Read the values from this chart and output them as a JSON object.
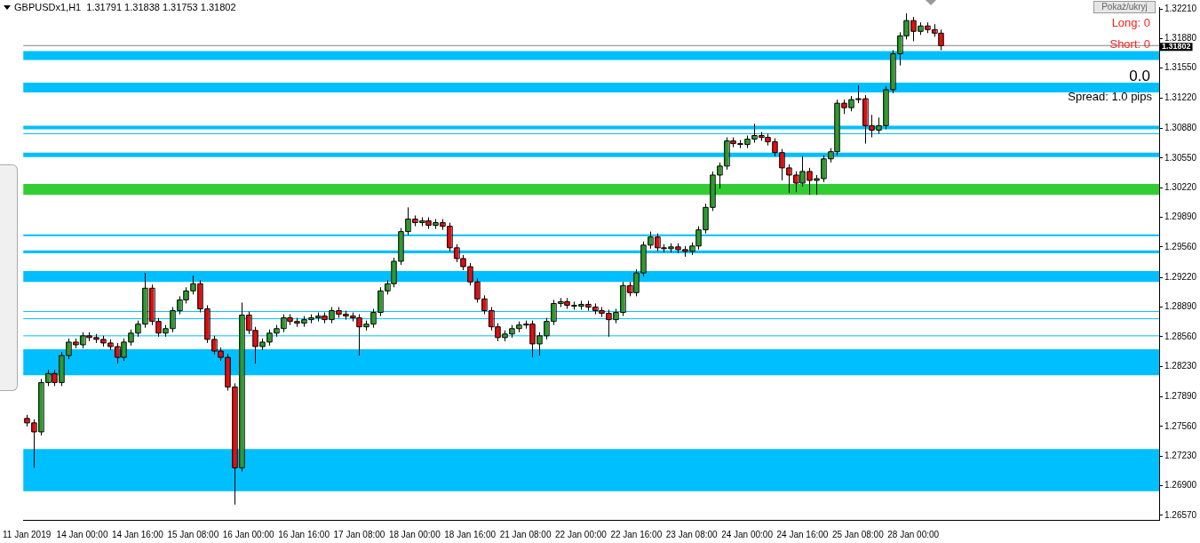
{
  "chart_data": {
    "type": "candlestick",
    "title": "GBPUSDx1,H1  1.31791 1.31838 1.31753 1.31802",
    "annotations": [
      "Long: 0",
      "Short: 0",
      "0.0",
      "Spread: 1.0 pips",
      "Pokaż/ukryj"
    ],
    "categories": [
      "11 Jan 2019",
      null,
      null,
      null,
      null,
      null,
      null,
      null,
      "14 Jan 00:00",
      null,
      null,
      null,
      null,
      null,
      null,
      null,
      "14 Jan 16:00",
      null,
      null,
      null,
      null,
      null,
      null,
      null,
      "15 Jan 08:00",
      null,
      null,
      null,
      null,
      null,
      null,
      null,
      "16 Jan 00:00",
      null,
      null,
      null,
      null,
      null,
      null,
      null,
      "16 Jan 16:00",
      null,
      null,
      null,
      null,
      null,
      null,
      null,
      "17 Jan 08:00",
      null,
      null,
      null,
      null,
      null,
      null,
      null,
      "18 Jan 00:00",
      null,
      null,
      null,
      null,
      null,
      null,
      null,
      "18 Jan 16:00",
      null,
      null,
      null,
      null,
      null,
      null,
      null,
      "21 Jan 08:00",
      null,
      null,
      null,
      null,
      null,
      null,
      null,
      "22 Jan 00:00",
      null,
      null,
      null,
      null,
      null,
      null,
      null,
      "22 Jan 16:00",
      null,
      null,
      null,
      null,
      null,
      null,
      null,
      "23 Jan 08:00",
      null,
      null,
      null,
      null,
      null,
      null,
      null,
      "24 Jan 00:00",
      null,
      null,
      null,
      null,
      null,
      null,
      null,
      "24 Jan 16:00",
      null,
      null,
      null,
      null,
      null,
      null,
      null,
      "25 Jan 08:00",
      null,
      null,
      null,
      null,
      null,
      null,
      null,
      "28 Jan 00:00",
      null,
      null,
      null,
      null,
      null,
      null,
      null,
      null,
      null,
      null,
      null,
      null,
      null,
      null,
      null,
      null,
      null,
      null,
      null,
      null,
      null,
      null,
      null,
      null,
      null,
      null,
      null,
      null,
      null,
      null,
      null,
      null,
      null,
      null,
      null
    ],
    "ohlc": [
      [
        1.2765,
        1.2769,
        1.2756,
        1.276
      ],
      [
        1.276,
        1.2764,
        1.271,
        1.275
      ],
      [
        1.275,
        1.2809,
        1.2746,
        1.2805
      ],
      [
        1.2805,
        1.2819,
        1.2801,
        1.2815
      ],
      [
        1.2815,
        1.2819,
        1.2801,
        1.2805
      ],
      [
        1.2805,
        1.2839,
        1.2801,
        1.2835
      ],
      [
        1.2835,
        1.2854,
        1.2831,
        1.285
      ],
      [
        1.285,
        1.2854,
        1.2843,
        1.2847
      ],
      [
        1.2847,
        1.2861,
        1.2843,
        1.2857
      ],
      [
        1.2857,
        1.2861,
        1.2851,
        1.2855
      ],
      [
        1.2855,
        1.2859,
        1.2849,
        1.2853
      ],
      [
        1.2853,
        1.2857,
        1.2845,
        1.2849
      ],
      [
        1.2849,
        1.2853,
        1.2841,
        1.2845
      ],
      [
        1.2845,
        1.2849,
        1.2826,
        1.2833
      ],
      [
        1.2833,
        1.2854,
        1.2829,
        1.285
      ],
      [
        1.285,
        1.2864,
        1.2846,
        1.286
      ],
      [
        1.286,
        1.2874,
        1.2856,
        1.287
      ],
      [
        1.287,
        1.2927,
        1.2866,
        1.291
      ],
      [
        1.291,
        1.2914,
        1.2869,
        1.2873
      ],
      [
        1.2873,
        1.2877,
        1.2856,
        1.286
      ],
      [
        1.286,
        1.2869,
        1.2856,
        1.2865
      ],
      [
        1.2865,
        1.2889,
        1.2861,
        1.2885
      ],
      [
        1.2885,
        1.2901,
        1.2881,
        1.2897
      ],
      [
        1.2897,
        1.2911,
        1.2893,
        1.2907
      ],
      [
        1.2907,
        1.2924,
        1.2903,
        1.2915
      ],
      [
        1.2915,
        1.2919,
        1.2883,
        1.2887
      ],
      [
        1.2887,
        1.2891,
        1.2849,
        1.2853
      ],
      [
        1.2853,
        1.2857,
        1.2836,
        1.284
      ],
      [
        1.284,
        1.2844,
        1.2829,
        1.2833
      ],
      [
        1.2833,
        1.2837,
        1.2796,
        1.28
      ],
      [
        1.28,
        1.2804,
        1.2669,
        1.271
      ],
      [
        1.271,
        1.2894,
        1.2706,
        1.288
      ],
      [
        1.288,
        1.2884,
        1.2859,
        1.2863
      ],
      [
        1.2863,
        1.2867,
        1.2826,
        1.2845
      ],
      [
        1.2845,
        1.2854,
        1.2841,
        1.285
      ],
      [
        1.285,
        1.2864,
        1.2846,
        1.286
      ],
      [
        1.286,
        1.2869,
        1.2856,
        1.2865
      ],
      [
        1.2865,
        1.2881,
        1.2861,
        1.2877
      ],
      [
        1.2877,
        1.2881,
        1.2869,
        1.2873
      ],
      [
        1.2873,
        1.2877,
        1.2867,
        1.2871
      ],
      [
        1.2871,
        1.2879,
        1.2867,
        1.2875
      ],
      [
        1.2875,
        1.2881,
        1.2871,
        1.2877
      ],
      [
        1.2877,
        1.2883,
        1.2873,
        1.2879
      ],
      [
        1.2879,
        1.2883,
        1.2871,
        1.2875
      ],
      [
        1.2875,
        1.2889,
        1.2871,
        1.2885
      ],
      [
        1.2885,
        1.2889,
        1.2877,
        1.2881
      ],
      [
        1.2881,
        1.2885,
        1.2875,
        1.2879
      ],
      [
        1.2879,
        1.2883,
        1.2873,
        1.2877
      ],
      [
        1.2877,
        1.2881,
        1.2835,
        1.2867
      ],
      [
        1.2867,
        1.2874,
        1.2863,
        1.287
      ],
      [
        1.287,
        1.2887,
        1.2866,
        1.2883
      ],
      [
        1.2883,
        1.2911,
        1.2879,
        1.2907
      ],
      [
        1.2907,
        1.2919,
        1.2903,
        1.2915
      ],
      [
        1.2915,
        1.2944,
        1.2911,
        1.294
      ],
      [
        1.294,
        1.2977,
        1.2936,
        1.2973
      ],
      [
        1.2973,
        1.3,
        1.2969,
        1.2987
      ],
      [
        1.2987,
        1.2991,
        1.2979,
        1.2983
      ],
      [
        1.2983,
        1.2989,
        1.2979,
        1.2985
      ],
      [
        1.2985,
        1.2989,
        1.2976,
        1.298
      ],
      [
        1.298,
        1.2987,
        1.2976,
        1.2983
      ],
      [
        1.2983,
        1.2987,
        1.2975,
        1.2979
      ],
      [
        1.2979,
        1.2983,
        1.2951,
        1.2955
      ],
      [
        1.2955,
        1.2959,
        1.2939,
        1.2943
      ],
      [
        1.2943,
        1.2947,
        1.293,
        1.2934
      ],
      [
        1.2934,
        1.2938,
        1.2913,
        1.2917
      ],
      [
        1.2917,
        1.2921,
        1.2894,
        1.2898
      ],
      [
        1.2898,
        1.2902,
        1.2881,
        1.2885
      ],
      [
        1.2885,
        1.2889,
        1.2863,
        1.2867
      ],
      [
        1.2867,
        1.2871,
        1.2851,
        1.2855
      ],
      [
        1.2855,
        1.2863,
        1.2851,
        1.2859
      ],
      [
        1.2859,
        1.2869,
        1.2855,
        1.2865
      ],
      [
        1.2865,
        1.2873,
        1.2861,
        1.2869
      ],
      [
        1.2869,
        1.2874,
        1.2865,
        1.287
      ],
      [
        1.287,
        1.2874,
        1.2833,
        1.2848
      ],
      [
        1.2848,
        1.2861,
        1.2835,
        1.2857
      ],
      [
        1.2857,
        1.2877,
        1.2853,
        1.2873
      ],
      [
        1.2873,
        1.2897,
        1.2869,
        1.2893
      ],
      [
        1.2893,
        1.2899,
        1.2889,
        1.2895
      ],
      [
        1.2895,
        1.2899,
        1.2887,
        1.2891
      ],
      [
        1.2891,
        1.2895,
        1.2886,
        1.289
      ],
      [
        1.289,
        1.2896,
        1.2886,
        1.2892
      ],
      [
        1.2892,
        1.2896,
        1.2885,
        1.2889
      ],
      [
        1.2889,
        1.2893,
        1.2881,
        1.2885
      ],
      [
        1.2885,
        1.2889,
        1.2878,
        1.2882
      ],
      [
        1.2882,
        1.2886,
        1.2856,
        1.2875
      ],
      [
        1.2875,
        1.2887,
        1.2871,
        1.2883
      ],
      [
        1.2883,
        1.2917,
        1.2879,
        1.2913
      ],
      [
        1.2913,
        1.2917,
        1.2901,
        1.2905
      ],
      [
        1.2905,
        1.2931,
        1.2901,
        1.2927
      ],
      [
        1.2927,
        1.2962,
        1.2923,
        1.2958
      ],
      [
        1.2958,
        1.2973,
        1.2954,
        1.2967
      ],
      [
        1.2967,
        1.2971,
        1.2951,
        1.2955
      ],
      [
        1.2955,
        1.2959,
        1.295,
        1.2954
      ],
      [
        1.2954,
        1.296,
        1.295,
        1.2956
      ],
      [
        1.2956,
        1.296,
        1.2949,
        1.2953
      ],
      [
        1.2953,
        1.2957,
        1.2945,
        1.2951
      ],
      [
        1.2951,
        1.2961,
        1.2947,
        1.2957
      ],
      [
        1.2957,
        1.2979,
        1.2953,
        1.2975
      ],
      [
        1.2975,
        1.3004,
        1.2971,
        1.3
      ],
      [
        1.3,
        1.304,
        1.2996,
        1.3036
      ],
      [
        1.3036,
        1.305,
        1.3021,
        1.3046
      ],
      [
        1.3046,
        1.3078,
        1.3042,
        1.3074
      ],
      [
        1.3074,
        1.3078,
        1.3067,
        1.3071
      ],
      [
        1.3071,
        1.3075,
        1.3066,
        1.307
      ],
      [
        1.307,
        1.308,
        1.3066,
        1.3076
      ],
      [
        1.3076,
        1.3093,
        1.3072,
        1.308
      ],
      [
        1.308,
        1.3084,
        1.3074,
        1.3078
      ],
      [
        1.3078,
        1.3082,
        1.3069,
        1.3073
      ],
      [
        1.3073,
        1.3077,
        1.3057,
        1.3061
      ],
      [
        1.3061,
        1.3065,
        1.303,
        1.3044
      ],
      [
        1.3044,
        1.3048,
        1.3016,
        1.3036
      ],
      [
        1.3036,
        1.304,
        1.3017,
        1.3027
      ],
      [
        1.3027,
        1.3057,
        1.3023,
        1.304
      ],
      [
        1.304,
        1.3044,
        1.3014,
        1.303
      ],
      [
        1.303,
        1.3036,
        1.3014,
        1.3032
      ],
      [
        1.3032,
        1.3058,
        1.3028,
        1.3054
      ],
      [
        1.3054,
        1.3066,
        1.305,
        1.3062
      ],
      [
        1.3062,
        1.312,
        1.3058,
        1.3116
      ],
      [
        1.3116,
        1.312,
        1.3104,
        1.3111
      ],
      [
        1.3111,
        1.3124,
        1.3107,
        1.312
      ],
      [
        1.312,
        1.3136,
        1.3116,
        1.3121
      ],
      [
        1.3121,
        1.3125,
        1.3071,
        1.3091
      ],
      [
        1.3091,
        1.3103,
        1.3078,
        1.3086
      ],
      [
        1.3086,
        1.31,
        1.3082,
        1.3091
      ],
      [
        1.3091,
        1.3135,
        1.3087,
        1.3131
      ],
      [
        1.3131,
        1.3175,
        1.3127,
        1.3171
      ],
      [
        1.3171,
        1.3195,
        1.3158,
        1.3191
      ],
      [
        1.3191,
        1.3216,
        1.3187,
        1.3208
      ],
      [
        1.3208,
        1.3212,
        1.3185,
        1.3196
      ],
      [
        1.3196,
        1.3206,
        1.3192,
        1.3202
      ],
      [
        1.3202,
        1.3206,
        1.3194,
        1.3198
      ],
      [
        1.3198,
        1.3204,
        1.319,
        1.3194
      ],
      [
        1.3194,
        1.3198,
        1.3175,
        1.318
      ],
      null,
      null,
      null,
      null,
      null,
      null,
      null,
      null,
      null,
      null,
      null,
      null,
      null,
      null,
      null,
      null,
      null,
      null,
      null,
      null,
      null,
      null,
      null,
      null,
      null,
      null,
      null,
      null,
      null,
      null,
      null
    ],
    "ylim": [
      1.2652,
      1.3223
    ],
    "yticks": [
      {
        "value": 1.2657,
        "label": "1.26570"
      },
      {
        "value": 1.269,
        "label": "1.26900"
      },
      {
        "value": 1.2723,
        "label": "1.27230"
      },
      {
        "value": 1.2756,
        "label": "1.27560"
      },
      {
        "value": 1.2789,
        "label": "1.27890"
      },
      {
        "value": 1.2823,
        "label": "1.28230"
      },
      {
        "value": 1.2856,
        "label": "1.28560"
      },
      {
        "value": 1.2889,
        "label": "1.28890"
      },
      {
        "value": 1.2922,
        "label": "1.29220"
      },
      {
        "value": 1.2956,
        "label": "1.29560"
      },
      {
        "value": 1.2989,
        "label": "1.29890"
      },
      {
        "value": 1.3022,
        "label": "1.30220"
      },
      {
        "value": 1.3055,
        "label": "1.30550"
      },
      {
        "value": 1.3088,
        "label": "1.30880"
      },
      {
        "value": 1.3122,
        "label": "1.31220"
      },
      {
        "value": 1.3155,
        "label": "1.31550"
      },
      {
        "value": 1.3188,
        "label": "1.31880"
      },
      {
        "value": 1.3221,
        "label": "1.32210"
      }
    ],
    "bands": [
      {
        "axis": "y",
        "from": 1.3164,
        "to": 1.3174,
        "color": "#00bfff"
      },
      {
        "axis": "y",
        "from": 1.3128,
        "to": 1.3139,
        "color": "#00bfff"
      },
      {
        "axis": "y",
        "from": 1.3087,
        "to": 1.3091,
        "color": "#00bfff"
      },
      {
        "axis": "y",
        "from": 1.3056,
        "to": 1.3061,
        "color": "#00bfff"
      },
      {
        "axis": "y",
        "from": 1.3014,
        "to": 1.3026,
        "color": "#32cd32"
      },
      {
        "axis": "y",
        "from": 1.2968,
        "to": 1.297,
        "color": "#00bfff"
      },
      {
        "axis": "y",
        "from": 1.2949,
        "to": 1.2952,
        "color": "#00bfff"
      },
      {
        "axis": "y",
        "from": 1.2917,
        "to": 1.2929,
        "color": "#00bfff"
      },
      {
        "axis": "y",
        "from": 1.2813,
        "to": 1.2842,
        "color": "#00bfff"
      },
      {
        "axis": "y",
        "from": 1.2684,
        "to": 1.2731,
        "color": "#00bfff"
      }
    ],
    "ref_lines": [
      {
        "axis": "y",
        "value": 1.31802,
        "label": "1.31802",
        "color": "#808080"
      },
      {
        "axis": "y",
        "value": 1.3082,
        "color": "#00bfff"
      },
      {
        "axis": "y",
        "value": 1.2884,
        "color": "#00bfff"
      },
      {
        "axis": "y",
        "value": 1.2876,
        "color": "#00bfff"
      },
      {
        "axis": "y",
        "value": 1.2857,
        "color": "#00bfff"
      }
    ]
  }
}
